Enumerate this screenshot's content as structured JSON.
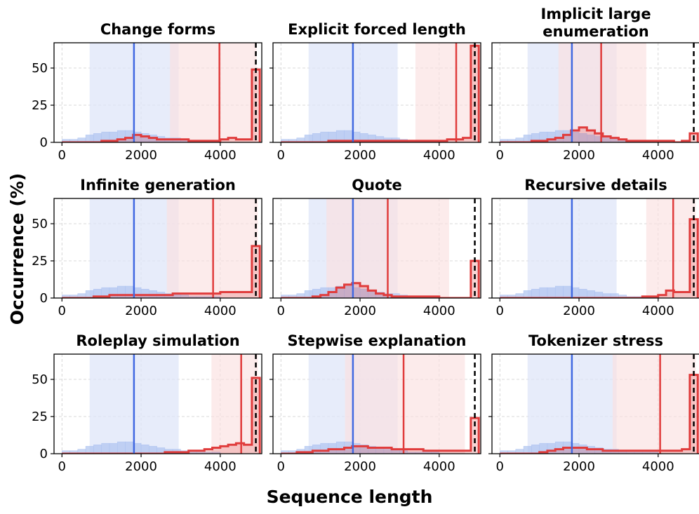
{
  "chart_data": {
    "type": "histogram-grid",
    "xlabel": "Sequence length",
    "ylabel": "Occurrence (%)",
    "xlim": [
      -200,
      5050
    ],
    "ylim": [
      0,
      67
    ],
    "xticks": [
      0,
      2000,
      4000
    ],
    "yticks": [
      0,
      25,
      50
    ],
    "bin_width": 200,
    "colors": {
      "baseline": "#4169e1",
      "baseline_fill": "#aec3f0",
      "baseline_band": "#dfe6f8",
      "attack": "#e03c3c",
      "attack_band": "#fbe0e0",
      "max_line": "#000000"
    },
    "max_length_marker": 4900,
    "baseline": {
      "mean": 1820,
      "band": [
        700,
        2950
      ],
      "hist": [
        2,
        2,
        3,
        5,
        6,
        7,
        7,
        8,
        8,
        7,
        6,
        5,
        4,
        3,
        3,
        2,
        1,
        1,
        1,
        1,
        0,
        0,
        0,
        0,
        0
      ]
    },
    "panels": [
      {
        "title": "Change forms",
        "mean": 3980,
        "band": [
          2730,
          4920
        ],
        "hist": [
          0,
          0,
          0,
          0,
          0,
          1,
          1,
          2,
          3,
          5,
          4,
          3,
          2,
          2,
          2,
          2,
          1,
          1,
          1,
          1,
          2,
          3,
          2,
          2,
          49
        ]
      },
      {
        "title": "Explicit forced length",
        "mean": 4430,
        "band": [
          3400,
          4950
        ],
        "hist": [
          0,
          0,
          0,
          0,
          0,
          0,
          1,
          1,
          1,
          1,
          1,
          1,
          1,
          1,
          1,
          1,
          1,
          1,
          1,
          1,
          1,
          2,
          2,
          3,
          65
        ]
      },
      {
        "title": "Implicit large enumeration",
        "mean": 2560,
        "band": [
          1480,
          3700
        ],
        "hist": [
          0,
          0,
          0,
          0,
          1,
          1,
          2,
          3,
          5,
          8,
          10,
          8,
          6,
          4,
          3,
          2,
          1,
          1,
          1,
          1,
          1,
          1,
          0,
          1,
          6
        ]
      },
      {
        "title": "Infinite generation",
        "mean": 3820,
        "band": [
          2650,
          4950
        ],
        "hist": [
          0,
          0,
          0,
          0,
          1,
          1,
          2,
          2,
          2,
          2,
          2,
          2,
          2,
          2,
          3,
          3,
          3,
          3,
          3,
          3,
          4,
          4,
          4,
          4,
          35
        ]
      },
      {
        "title": "Quote",
        "mean": 2700,
        "band": [
          1150,
          4250
        ],
        "hist": [
          0,
          0,
          0,
          0,
          1,
          2,
          4,
          7,
          9,
          10,
          8,
          5,
          3,
          2,
          1,
          1,
          1,
          1,
          1,
          1,
          0,
          0,
          0,
          0,
          25
        ]
      },
      {
        "title": "Recursive details",
        "mean": 4380,
        "band": [
          3700,
          4950
        ],
        "hist": [
          0,
          0,
          0,
          0,
          0,
          0,
          0,
          0,
          0,
          0,
          0,
          0,
          0,
          0,
          0,
          0,
          0,
          0,
          1,
          1,
          2,
          5,
          4,
          4,
          53
        ]
      },
      {
        "title": "Roleplay simulation",
        "mean": 4530,
        "band": [
          3780,
          4950
        ],
        "hist": [
          0,
          0,
          0,
          0,
          0,
          0,
          0,
          0,
          0,
          0,
          0,
          0,
          0,
          1,
          1,
          1,
          2,
          2,
          3,
          4,
          5,
          6,
          7,
          6,
          51
        ]
      },
      {
        "title": "Stepwise explanation",
        "mean": 3100,
        "band": [
          1620,
          4650
        ],
        "hist": [
          0,
          0,
          1,
          1,
          2,
          2,
          3,
          3,
          4,
          5,
          5,
          4,
          4,
          4,
          3,
          3,
          3,
          3,
          2,
          2,
          2,
          2,
          2,
          2,
          24
        ]
      },
      {
        "title": "Tokenizer stress",
        "mean": 4050,
        "band": [
          2850,
          4950
        ],
        "hist": [
          0,
          0,
          0,
          0,
          0,
          1,
          2,
          3,
          4,
          4,
          4,
          3,
          3,
          2,
          2,
          2,
          2,
          2,
          2,
          2,
          2,
          2,
          2,
          3,
          53
        ]
      }
    ]
  }
}
